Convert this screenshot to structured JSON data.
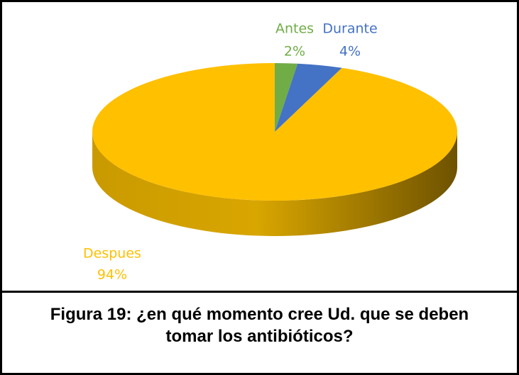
{
  "chart_data": {
    "type": "pie",
    "categories": [
      "Antes",
      "Durante",
      "Despues"
    ],
    "values": [
      2,
      4,
      94
    ],
    "value_labels": [
      "2%",
      "4%",
      "94%"
    ],
    "colors": [
      "#70ad47",
      "#4472c4",
      "#ffc000"
    ],
    "caption": "Figura 19: ¿en qué momento cree Ud. que se deben tomar los antibióticos?"
  }
}
